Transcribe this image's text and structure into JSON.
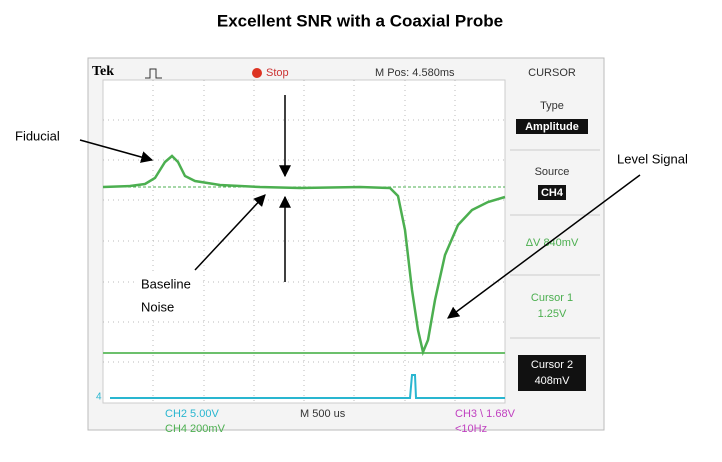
{
  "header": {
    "title": "Excellent SNR with a Coaxial Probe"
  },
  "annotations": {
    "fiducial": "Fiducial",
    "level_signal": "Level Signal",
    "baseline_noise": [
      "Baseline",
      "Noise"
    ]
  },
  "scope": {
    "top_bar": {
      "brand": "Tek",
      "state": "Stop",
      "position": "M Pos: 4.580ms",
      "menu": "CURSOR"
    },
    "menu": [
      {
        "label": "Type",
        "value": "Amplitude"
      },
      {
        "label": "Source",
        "value": "CH4"
      },
      {
        "label": "ΔV 840mV"
      },
      {
        "label": "Cursor 1",
        "value": "1.25V"
      },
      {
        "label": "Cursor 2",
        "value": "408mV"
      }
    ],
    "bottom_bar": {
      "ch2": "CH2  5.00V",
      "ch4": "CH4  200mV",
      "timebase": "M 500 us",
      "trigger": "CH3 \\ 1.68V",
      "freq": "<10Hz"
    },
    "marker": "4"
  }
}
